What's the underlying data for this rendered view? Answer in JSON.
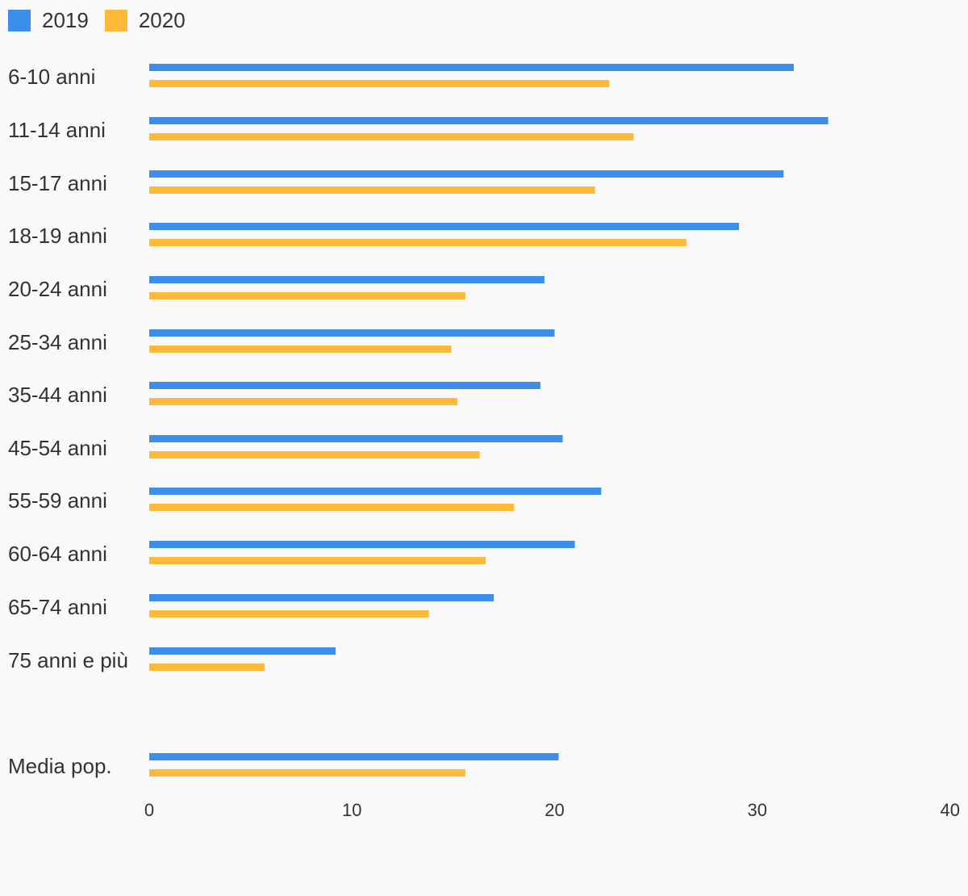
{
  "chart_data": {
    "type": "bar",
    "orientation": "horizontal",
    "categories": [
      "6-10 anni",
      "11-14 anni",
      "15-17 anni",
      "18-19 anni",
      "20-24 anni",
      "25-34 anni",
      "35-44 anni",
      "45-54 anni",
      "55-59 anni",
      "60-64 anni",
      "65-74 anni",
      "75 anni e più",
      "Media pop."
    ],
    "series": [
      {
        "name": "2019",
        "color": "#3b8eea",
        "values": [
          31.8,
          33.5,
          31.3,
          29.1,
          19.5,
          20.0,
          19.3,
          20.4,
          22.3,
          21.0,
          17.0,
          9.2,
          20.2
        ]
      },
      {
        "name": "2020",
        "color": "#ffb938",
        "values": [
          22.7,
          23.9,
          22.0,
          26.5,
          15.6,
          14.9,
          15.2,
          16.3,
          18.0,
          16.6,
          13.8,
          5.7,
          15.6
        ]
      }
    ],
    "xlim": [
      0,
      40
    ],
    "xticks": [
      "0",
      "10",
      "20",
      "30",
      "40"
    ],
    "legend": "top-left",
    "grid": false,
    "title": "",
    "xlabel": "",
    "ylabel": ""
  }
}
